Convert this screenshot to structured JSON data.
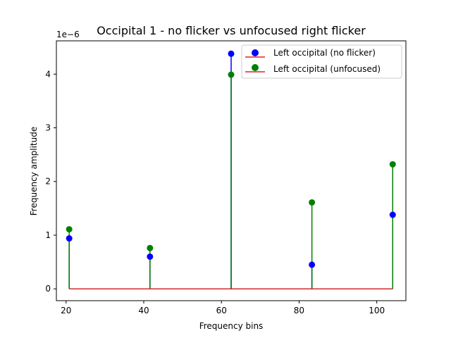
{
  "chart_data": {
    "type": "stem",
    "title": "Occipital 1 - no flicker vs unfocused right flicker",
    "xlabel": "Frequency bins",
    "ylabel": "Frequency amplitude",
    "y_offset_label": "1e−6",
    "y_scale": 1e-06,
    "xlim": [
      17.5,
      107.5
    ],
    "ylim": [
      -0.22,
      4.62
    ],
    "xticks": [
      20,
      40,
      60,
      80,
      100
    ],
    "xtick_labels": [
      "20",
      "40",
      "60",
      "80",
      "100"
    ],
    "yticks": [
      0,
      1,
      2,
      3,
      4
    ],
    "ytick_labels": [
      "0",
      "1",
      "2",
      "3",
      "4"
    ],
    "x": [
      20.8,
      41.6,
      62.5,
      83.3,
      104.1
    ],
    "baseline": 0,
    "baseline_color": "#d62728",
    "grid": false,
    "legend_position": "top-right",
    "series": [
      {
        "name": "Left occipital (no flicker)",
        "color": "#0000ff",
        "values": [
          0.94,
          0.6,
          4.38,
          0.45,
          1.38
        ]
      },
      {
        "name": "Left occipital (unfocused)",
        "color": "#008000",
        "values": [
          1.11,
          0.76,
          3.99,
          1.61,
          2.32
        ]
      }
    ]
  }
}
